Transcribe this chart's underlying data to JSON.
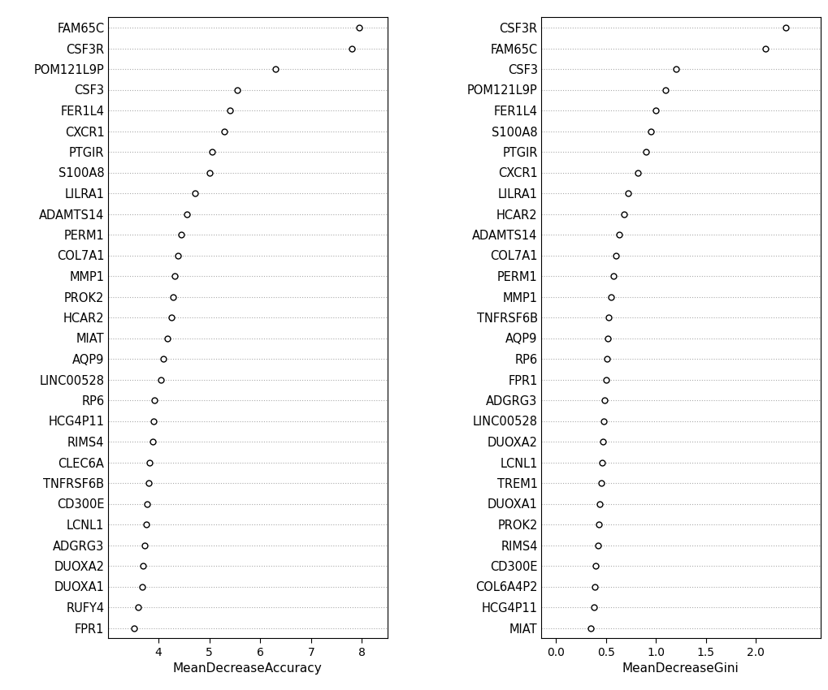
{
  "left_genes": [
    "FAM65C",
    "CSF3R",
    "POM121L9P",
    "CSF3",
    "FER1L4",
    "CXCR1",
    "PTGIR",
    "S100A8",
    "LILRA1",
    "ADAMTS14",
    "PERM1",
    "COL7A1",
    "MMP1",
    "PROK2",
    "HCAR2",
    "MIAT",
    "AQP9",
    "LINC00528",
    "RP6",
    "HCG4P11",
    "RIMS4",
    "CLEC6A",
    "TNFRSF6B",
    "CD300E",
    "LCNL1",
    "ADGRG3",
    "DUOXA2",
    "DUOXA1",
    "RUFY4",
    "FPR1"
  ],
  "left_values": [
    7.95,
    7.8,
    6.3,
    5.55,
    5.4,
    5.3,
    5.05,
    5.0,
    4.72,
    4.55,
    4.45,
    4.38,
    4.32,
    4.28,
    4.25,
    4.18,
    4.1,
    4.05,
    3.92,
    3.9,
    3.88,
    3.82,
    3.8,
    3.78,
    3.75,
    3.73,
    3.7,
    3.68,
    3.6,
    3.52
  ],
  "left_xlabel": "MeanDecreaseAccuracy",
  "left_xlim": [
    3.0,
    8.5
  ],
  "left_xticks": [
    4,
    5,
    6,
    7,
    8
  ],
  "right_genes": [
    "CSF3R",
    "FAM65C",
    "CSF3",
    "POM121L9P",
    "FER1L4",
    "S100A8",
    "PTGIR",
    "CXCR1",
    "LILRA1",
    "HCAR2",
    "ADAMTS14",
    "COL7A1",
    "PERM1",
    "MMP1",
    "TNFRSF6B",
    "AQP9",
    "RP6",
    "FPR1",
    "ADGRG3",
    "LINC00528",
    "DUOXA2",
    "LCNL1",
    "TREM1",
    "DUOXA1",
    "PROK2",
    "RIMS4",
    "CD300E",
    "COL6A4P2",
    "HCG4P11",
    "MIAT"
  ],
  "right_values": [
    2.3,
    2.1,
    1.2,
    1.1,
    1.0,
    0.95,
    0.9,
    0.82,
    0.72,
    0.68,
    0.63,
    0.6,
    0.58,
    0.55,
    0.53,
    0.52,
    0.51,
    0.5,
    0.49,
    0.48,
    0.47,
    0.46,
    0.45,
    0.44,
    0.43,
    0.42,
    0.4,
    0.39,
    0.38,
    0.35
  ],
  "right_xlabel": "MeanDecreaseGini",
  "right_xlim": [
    -0.15,
    2.65
  ],
  "right_xticks": [
    0.0,
    0.5,
    1.0,
    1.5,
    2.0
  ],
  "marker": "o",
  "marker_size": 5,
  "marker_facecolor": "white",
  "marker_edgecolor": "black",
  "marker_linewidth": 1.0,
  "bg_color": "white",
  "grid_color": "#aaaaaa",
  "grid_style": "dotted",
  "font_size": 10.5,
  "xlabel_fontsize": 11,
  "tick_fontsize": 10
}
